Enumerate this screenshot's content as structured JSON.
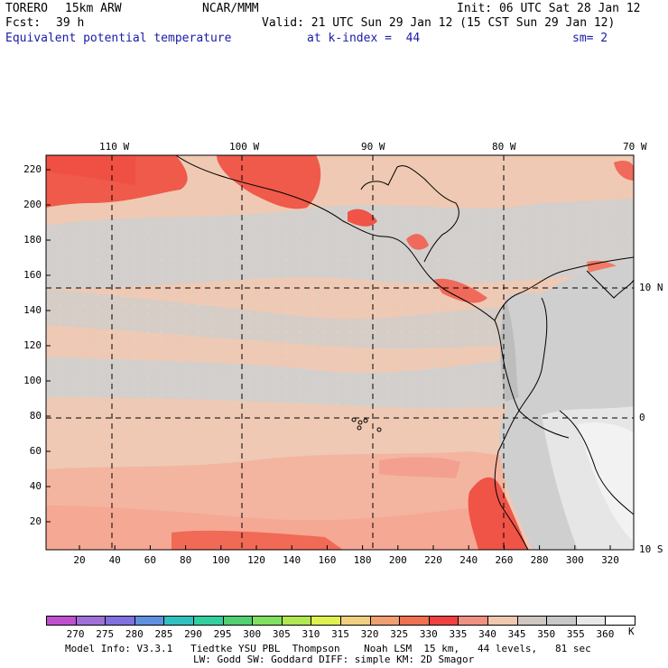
{
  "header": {
    "model": "TORERO",
    "resolution": "15km ARW",
    "org": "NCAR/MMM",
    "init": "Init: 06 UTC Sat 28 Jan 12",
    "fcst_label": "Fcst:",
    "fcst_hours": "39 h",
    "valid": "Valid: 21 UTC Sun 29 Jan 12 (15 CST Sun 29 Jan 12)",
    "field": "Equivalent potential temperature",
    "level": "at k-index =  44",
    "smooth": "sm= 2"
  },
  "map": {
    "top_lon_labels": [
      "110 W",
      "100 W",
      "90 W",
      "80 W",
      "70 W"
    ],
    "right_lat_labels": [
      "10 N",
      "0",
      "10 S"
    ],
    "y_grid_labels": [
      "220",
      "200",
      "180",
      "160",
      "140",
      "120",
      "100",
      "80",
      "60",
      "40",
      "20"
    ],
    "x_grid_labels": [
      "20",
      "40",
      "60",
      "80",
      "100",
      "120",
      "140",
      "160",
      "180",
      "200",
      "220",
      "240",
      "260",
      "280",
      "300",
      "320"
    ]
  },
  "colorbar": {
    "unit": "K",
    "labels": [
      "270",
      "275",
      "280",
      "285",
      "290",
      "295",
      "300",
      "305",
      "310",
      "315",
      "320",
      "325",
      "330",
      "335",
      "340",
      "345",
      "350",
      "355",
      "360"
    ],
    "colors": [
      "#c050d0",
      "#a070d8",
      "#8070e0",
      "#6090e0",
      "#30c0c0",
      "#30d0a0",
      "#50d070",
      "#80e060",
      "#b0e850",
      "#e0f050",
      "#f0d080",
      "#f0a070",
      "#f07050",
      "#f04040",
      "#f09080",
      "#f0c8b0",
      "#d0c8c0",
      "#c8c8c8",
      "#e8e8e8",
      "#ffffff"
    ]
  },
  "footer": {
    "line1": "Model Info: V3.3.1   Tiedtke YSU PBL  Thompson    Noah LSM  15 km,   44 levels,   81 sec",
    "line2": "LW: Godd SW: Goddard DIFF: simple KM: 2D Smagor"
  }
}
